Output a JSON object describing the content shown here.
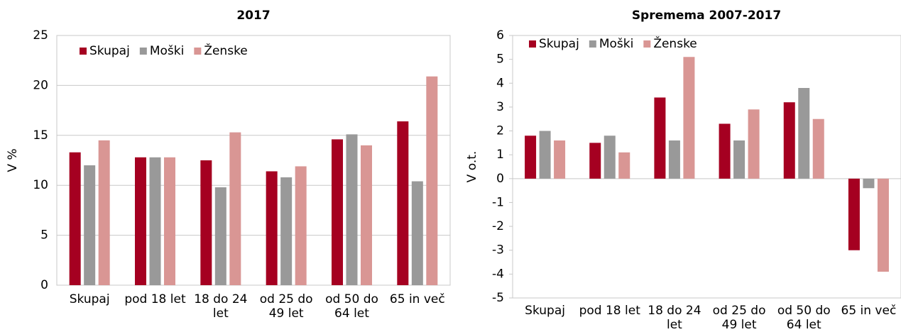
{
  "chart_data": [
    {
      "type": "bar",
      "title": "2017",
      "y_label": "V %",
      "categories": [
        "Skupaj",
        "pod 18 let",
        "18 do 24 let",
        "od 25 do 49 let",
        "od 50 do 64 let",
        "65 in več"
      ],
      "series": [
        {
          "name": "Skupaj",
          "color": "#a50021",
          "values": [
            13.3,
            12.8,
            12.5,
            11.4,
            14.6,
            16.4
          ]
        },
        {
          "name": "Moški",
          "color": "#999999",
          "values": [
            12.0,
            12.8,
            9.8,
            10.8,
            15.1,
            10.4
          ]
        },
        {
          "name": "Ženske",
          "color": "#d99694",
          "values": [
            14.5,
            12.8,
            15.3,
            11.9,
            14.0,
            20.9
          ]
        }
      ],
      "ylim": [
        0,
        25
      ],
      "yticks": [
        0,
        5,
        10,
        15,
        20,
        25
      ],
      "grid": true
    },
    {
      "type": "bar",
      "title": "Spremema 2007-2017",
      "y_label": "V o.t.",
      "categories": [
        "Skupaj",
        "pod 18 let",
        "18 do 24 let",
        "od 25 do 49 let",
        "od 50 do 64 let",
        "65 in več"
      ],
      "series": [
        {
          "name": "Skupaj",
          "color": "#a50021",
          "values": [
            1.8,
            1.5,
            3.4,
            2.3,
            3.2,
            -3.0
          ]
        },
        {
          "name": "Moški",
          "color": "#999999",
          "values": [
            2.0,
            1.8,
            1.6,
            1.6,
            3.8,
            -0.4
          ]
        },
        {
          "name": "Ženske",
          "color": "#d99694",
          "values": [
            1.6,
            1.1,
            5.1,
            2.9,
            2.5,
            -3.9
          ]
        }
      ],
      "ylim": [
        -5,
        6
      ],
      "yticks": [
        -5,
        -4,
        -3,
        -2,
        -1,
        0,
        1,
        2,
        3,
        4,
        5,
        6
      ],
      "grid": false
    }
  ]
}
